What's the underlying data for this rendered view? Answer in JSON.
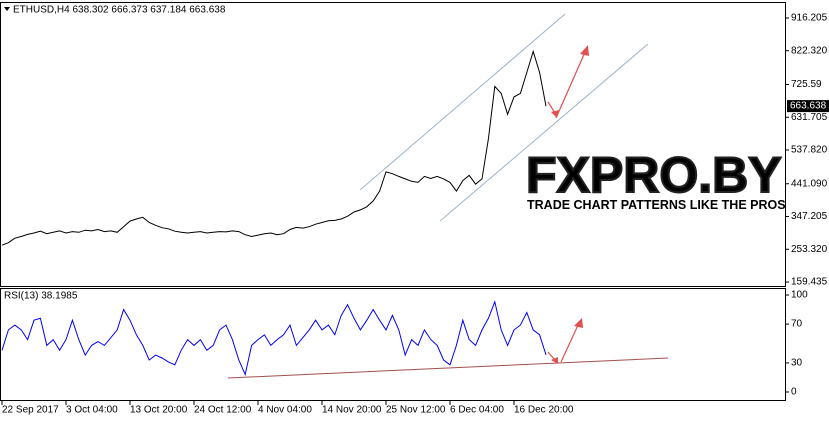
{
  "chart_data": [
    {
      "type": "line",
      "title": "ETHUSD,H4  638.302 666.373 637.184 663.638",
      "color": "#000000",
      "values": [
        265,
        272,
        285,
        290,
        296,
        300,
        305,
        298,
        302,
        306,
        300,
        304,
        302,
        308,
        306,
        310,
        304,
        306,
        302,
        318,
        334,
        340,
        345,
        330,
        322,
        315,
        312,
        305,
        302,
        300,
        302,
        304,
        300,
        302,
        304,
        303,
        306,
        304,
        295,
        290,
        294,
        298,
        300,
        295,
        298,
        310,
        316,
        314,
        318,
        325,
        330,
        335,
        336,
        340,
        348,
        360,
        366,
        375,
        392,
        420,
        475,
        470,
        462,
        455,
        448,
        445,
        462,
        456,
        462,
        455,
        445,
        420,
        450,
        465,
        440,
        455,
        570,
        720,
        700,
        640,
        690,
        700,
        760,
        820,
        760,
        663.638
      ],
      "ylim": [
        148,
        962
      ],
      "yticks": [
        916.205,
        {
          "value": 822.32,
          "label": "822.320"
        },
        725.59,
        631.705,
        {
          "value": 537.82,
          "label": "537.820"
        },
        {
          "value": 441.09,
          "label": "441.090"
        },
        347.205,
        {
          "value": 253.32,
          "label": "253.320"
        },
        159.435
      ],
      "grid": false
    },
    {
      "type": "line",
      "title": "RSI(13) 38.1985",
      "color": "#0000ff",
      "categories": [
        "22 Sep 2017",
        null,
        null,
        null,
        null,
        null,
        null,
        null,
        null,
        null,
        "3 Oct 04:00",
        null,
        null,
        null,
        null,
        null,
        null,
        null,
        null,
        null,
        "13 Oct 20:00",
        null,
        null,
        null,
        null,
        null,
        null,
        null,
        null,
        null,
        "24 Oct 12:00",
        null,
        null,
        null,
        null,
        null,
        null,
        null,
        null,
        null,
        "4 Nov 04:00",
        null,
        null,
        null,
        null,
        null,
        null,
        null,
        null,
        null,
        "14 Nov 20:00",
        null,
        null,
        null,
        null,
        null,
        null,
        null,
        null,
        null,
        "25 Nov 12:00",
        null,
        null,
        null,
        null,
        null,
        null,
        null,
        null,
        null,
        "6 Dec 04:00",
        null,
        null,
        null,
        null,
        null,
        null,
        null,
        null,
        null,
        "16 Dec 20:00",
        null,
        null,
        null,
        null,
        null
      ],
      "values": [
        43,
        64,
        69,
        64,
        54,
        74,
        76,
        48,
        54,
        43,
        54,
        74,
        54,
        38,
        48,
        52,
        48,
        56,
        64,
        85,
        74,
        59,
        48,
        33,
        38,
        35,
        31,
        28,
        43,
        54,
        48,
        54,
        43,
        48,
        64,
        69,
        54,
        33,
        18,
        48,
        54,
        59,
        48,
        54,
        59,
        69,
        48,
        56,
        64,
        74,
        64,
        69,
        59,
        79,
        90,
        76,
        64,
        74,
        85,
        74,
        64,
        79,
        64,
        38,
        54,
        48,
        64,
        54,
        48,
        33,
        28,
        48,
        74,
        54,
        48,
        64,
        76,
        93,
        64,
        48,
        64,
        69,
        82,
        64,
        59,
        38.1985
      ],
      "ylim": [
        -9.3,
        106.2
      ],
      "yticks": [
        100,
        70,
        30,
        0
      ],
      "grid": false
    }
  ],
  "watermark": {
    "title": "FXPRO.BY",
    "subtitle": "TRADE CHART PATTERNS LIKE THE PROS"
  }
}
